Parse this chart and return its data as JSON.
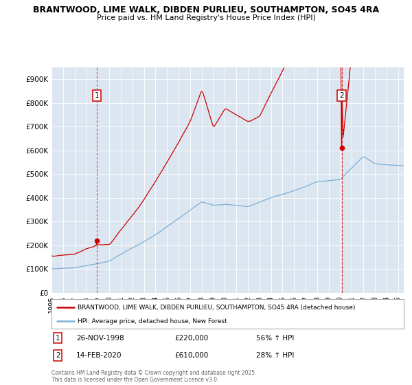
{
  "title1": "BRANTWOOD, LIME WALK, DIBDEN PURLIEU, SOUTHAMPTON, SO45 4RA",
  "title2": "Price paid vs. HM Land Registry's House Price Index (HPI)",
  "bg_color": "#dce6f1",
  "red_color": "#cc0000",
  "blue_color": "#7bafd4",
  "marker1_label": "1",
  "marker2_label": "2",
  "legend_line1": "BRANTWOOD, LIME WALK, DIBDEN PURLIEU, SOUTHAMPTON, SO45 4RA (detached house)",
  "legend_line2": "HPI: Average price, detached house, New Forest",
  "footer": "Contains HM Land Registry data © Crown copyright and database right 2025.\nThis data is licensed under the Open Government Licence v3.0.",
  "sale1_year": 1998.917,
  "sale1_price": 220000,
  "sale2_year": 2020.12,
  "sale2_price": 610000,
  "xstart": 1995,
  "xend": 2025,
  "ymin": 0,
  "ymax": 950000
}
